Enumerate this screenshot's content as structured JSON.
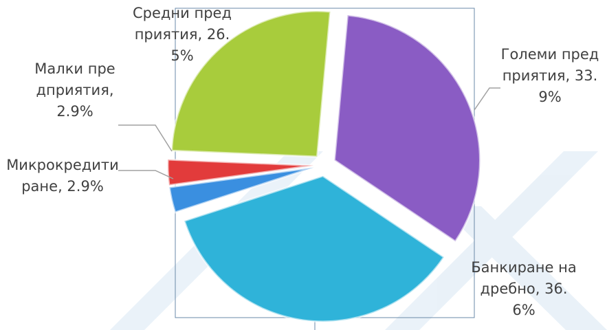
{
  "chart_data": {
    "type": "pie",
    "labels": [
      "Големи предприятия, 33.9%",
      "Банкиране на дребно, 36.6%",
      "Микрокредитиране, 2.9%",
      "Малки предприятия, 2.9%",
      "Средни предприятия, 26.5%"
    ],
    "values": [
      33.9,
      36.6,
      2.9,
      2.9,
      26.5
    ],
    "colors": [
      "#8a5cc4",
      "#2fb3d9",
      "#3a8fe0",
      "#e23b3b",
      "#a8cc3c"
    ]
  }
}
